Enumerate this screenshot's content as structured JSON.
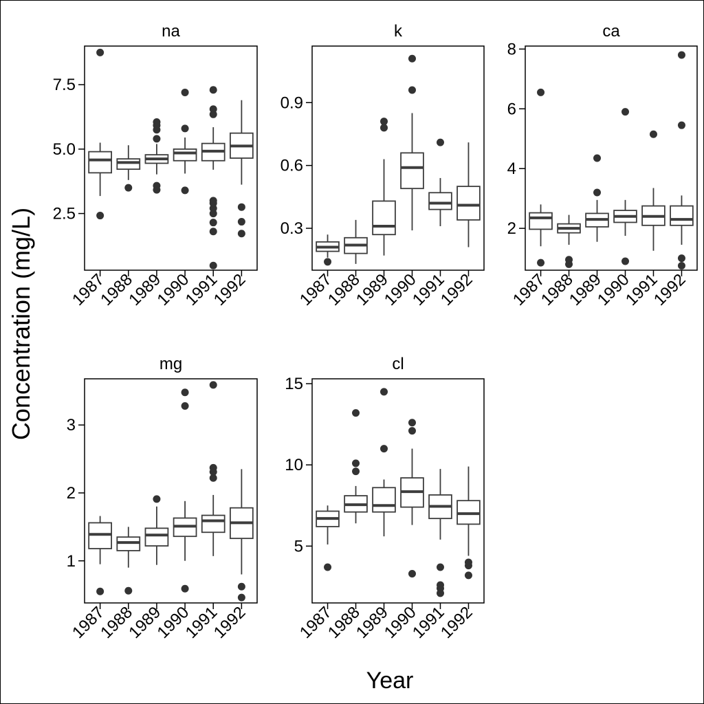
{
  "chart_data": {
    "type": "boxplot",
    "ylabel": "Concentration (mg/L)",
    "xlabel": "Year",
    "categories": [
      "1987",
      "1988",
      "1989",
      "1990",
      "1991",
      "1992"
    ],
    "panels": [
      {
        "title": "na",
        "ylim": [
          0.3,
          9.0
        ],
        "yticks": [
          2.5,
          5.0,
          7.5
        ],
        "ytick_labels": [
          "2.5",
          "5.0",
          "7.5"
        ],
        "boxes": [
          {
            "q1": 4.08,
            "median": 4.58,
            "q3": 4.9,
            "whisker_low": 3.18,
            "whisker_high": 5.25,
            "outliers": [
              2.42,
              8.75
            ]
          },
          {
            "q1": 4.22,
            "median": 4.48,
            "q3": 4.62,
            "whisker_low": 3.8,
            "whisker_high": 5.15,
            "outliers": [
              3.5
            ]
          },
          {
            "q1": 4.45,
            "median": 4.62,
            "q3": 4.78,
            "whisker_low": 4.02,
            "whisker_high": 5.2,
            "outliers": [
              3.42,
              3.58,
              5.4,
              5.75,
              5.92,
              6.05
            ]
          },
          {
            "q1": 4.55,
            "median": 4.85,
            "q3": 5.0,
            "whisker_low": 4.05,
            "whisker_high": 5.45,
            "outliers": [
              3.4,
              5.8,
              7.2
            ]
          },
          {
            "q1": 4.55,
            "median": 4.92,
            "q3": 5.22,
            "whisker_low": 4.2,
            "whisker_high": 5.85,
            "outliers": [
              0.48,
              1.8,
              2.15,
              2.5,
              2.7,
              2.9,
              3.0,
              6.35,
              6.55,
              7.3
            ]
          },
          {
            "q1": 4.65,
            "median": 5.12,
            "q3": 5.62,
            "whisker_low": 3.62,
            "whisker_high": 6.9,
            "outliers": [
              1.72,
              2.18,
              2.75
            ]
          }
        ]
      },
      {
        "title": "k",
        "ylim": [
          0.1,
          1.17
        ],
        "yticks": [
          0.3,
          0.6,
          0.9
        ],
        "ytick_labels": [
          "0.3",
          "0.6",
          "0.9"
        ],
        "boxes": [
          {
            "q1": 0.19,
            "median": 0.21,
            "q3": 0.235,
            "whisker_low": 0.16,
            "whisker_high": 0.27,
            "outliers": [
              0.14
            ]
          },
          {
            "q1": 0.18,
            "median": 0.22,
            "q3": 0.255,
            "whisker_low": 0.13,
            "whisker_high": 0.34,
            "outliers": []
          },
          {
            "q1": 0.27,
            "median": 0.31,
            "q3": 0.43,
            "whisker_low": 0.17,
            "whisker_high": 0.63,
            "outliers": [
              0.78,
              0.81
            ]
          },
          {
            "q1": 0.49,
            "median": 0.59,
            "q3": 0.66,
            "whisker_low": 0.29,
            "whisker_high": 0.85,
            "outliers": [
              0.96,
              1.11
            ]
          },
          {
            "q1": 0.39,
            "median": 0.42,
            "q3": 0.47,
            "whisker_low": 0.31,
            "whisker_high": 0.54,
            "outliers": [
              0.71
            ]
          },
          {
            "q1": 0.34,
            "median": 0.41,
            "q3": 0.5,
            "whisker_low": 0.21,
            "whisker_high": 0.71,
            "outliers": []
          }
        ]
      },
      {
        "title": "ca",
        "ylim": [
          0.6,
          8.1
        ],
        "yticks": [
          2,
          4,
          6,
          8
        ],
        "ytick_labels": [
          "2",
          "4",
          "6",
          "8"
        ],
        "boxes": [
          {
            "q1": 1.97,
            "median": 2.35,
            "q3": 2.52,
            "whisker_low": 1.4,
            "whisker_high": 2.8,
            "outliers": [
              0.85,
              6.55
            ]
          },
          {
            "q1": 1.85,
            "median": 2.0,
            "q3": 2.15,
            "whisker_low": 1.45,
            "whisker_high": 2.45,
            "outliers": [
              0.8,
              0.95
            ]
          },
          {
            "q1": 2.05,
            "median": 2.3,
            "q3": 2.5,
            "whisker_low": 1.55,
            "whisker_high": 2.95,
            "outliers": [
              3.2,
              4.35
            ]
          },
          {
            "q1": 2.2,
            "median": 2.4,
            "q3": 2.6,
            "whisker_low": 1.75,
            "whisker_high": 2.95,
            "outliers": [
              0.9,
              5.9
            ]
          },
          {
            "q1": 2.1,
            "median": 2.4,
            "q3": 2.75,
            "whisker_low": 1.25,
            "whisker_high": 3.35,
            "outliers": [
              5.15
            ]
          },
          {
            "q1": 2.1,
            "median": 2.3,
            "q3": 2.75,
            "whisker_low": 1.45,
            "whisker_high": 3.1,
            "outliers": [
              0.75,
              1.0,
              5.45,
              7.8
            ]
          }
        ]
      },
      {
        "title": "mg",
        "ylim": [
          0.38,
          3.68
        ],
        "yticks": [
          1,
          2,
          3
        ],
        "ytick_labels": [
          "1",
          "2",
          "3"
        ],
        "boxes": [
          {
            "q1": 1.18,
            "median": 1.39,
            "q3": 1.56,
            "whisker_low": 0.95,
            "whisker_high": 1.66,
            "outliers": [
              0.55
            ]
          },
          {
            "q1": 1.15,
            "median": 1.27,
            "q3": 1.35,
            "whisker_low": 0.9,
            "whisker_high": 1.5,
            "outliers": [
              0.56
            ]
          },
          {
            "q1": 1.22,
            "median": 1.38,
            "q3": 1.48,
            "whisker_low": 0.94,
            "whisker_high": 1.8,
            "outliers": [
              1.91
            ]
          },
          {
            "q1": 1.36,
            "median": 1.51,
            "q3": 1.63,
            "whisker_low": 1.0,
            "whisker_high": 1.88,
            "outliers": [
              0.59,
              3.28,
              3.48
            ]
          },
          {
            "q1": 1.42,
            "median": 1.59,
            "q3": 1.67,
            "whisker_low": 1.07,
            "whisker_high": 1.97,
            "outliers": [
              2.22,
              2.31,
              2.37,
              3.59
            ]
          },
          {
            "q1": 1.33,
            "median": 1.56,
            "q3": 1.78,
            "whisker_low": 0.8,
            "whisker_high": 2.35,
            "outliers": [
              0.46,
              0.62
            ]
          }
        ]
      },
      {
        "title": "cl",
        "ylim": [
          1.5,
          15.3
        ],
        "yticks": [
          5,
          10,
          15
        ],
        "ytick_labels": [
          "5",
          "10",
          "15"
        ],
        "boxes": [
          {
            "q1": 6.2,
            "median": 6.7,
            "q3": 7.15,
            "whisker_low": 5.1,
            "whisker_high": 7.5,
            "outliers": [
              3.7
            ]
          },
          {
            "q1": 7.1,
            "median": 7.55,
            "q3": 8.1,
            "whisker_low": 6.4,
            "whisker_high": 8.7,
            "outliers": [
              9.6,
              10.1,
              13.2
            ]
          },
          {
            "q1": 7.1,
            "median": 7.5,
            "q3": 8.6,
            "whisker_low": 5.6,
            "whisker_high": 9.1,
            "outliers": [
              11.0,
              14.5
            ]
          },
          {
            "q1": 7.4,
            "median": 8.35,
            "q3": 9.2,
            "whisker_low": 6.3,
            "whisker_high": 11.0,
            "outliers": [
              3.3,
              12.1,
              12.6
            ]
          },
          {
            "q1": 6.7,
            "median": 7.45,
            "q3": 8.15,
            "whisker_low": 5.4,
            "whisker_high": 9.75,
            "outliers": [
              2.1,
              2.4,
              2.6,
              3.7
            ]
          },
          {
            "q1": 6.35,
            "median": 7.0,
            "q3": 7.8,
            "whisker_low": 4.4,
            "whisker_high": 9.9,
            "outliers": [
              3.2,
              3.8,
              4.0
            ]
          }
        ]
      }
    ]
  }
}
